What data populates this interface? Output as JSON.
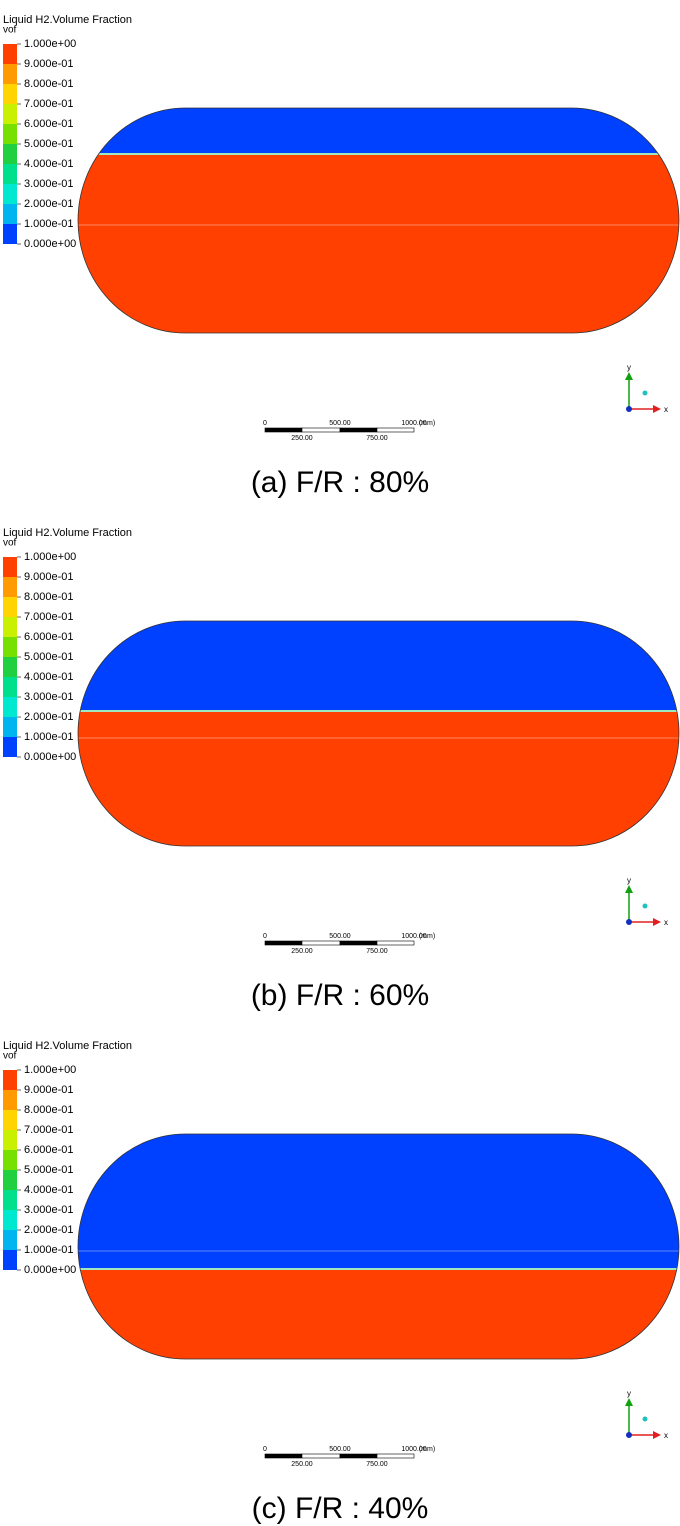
{
  "panels": [
    {
      "legend": {
        "title": "Liquid H2.Volume Fraction",
        "unit": "vof",
        "labels": [
          "1.000e+00",
          "9.000e-01",
          "8.000e-01",
          "7.000e-01",
          "6.000e-01",
          "5.000e-01",
          "4.000e-01",
          "3.000e-01",
          "2.000e-01",
          "1.000e-01",
          "0.000e+00"
        ]
      },
      "scale": {
        "top": [
          "0",
          "500.00",
          "1000.00"
        ],
        "unit": "(mm)",
        "bottom": [
          "250.00",
          "750.00"
        ]
      },
      "axes": {
        "x": "x",
        "y": "y"
      },
      "caption": "(a) F/R : 80%"
    },
    {
      "legend": {
        "title": "Liquid H2.Volume Fraction",
        "unit": "vof",
        "labels": [
          "1.000e+00",
          "9.000e-01",
          "8.000e-01",
          "7.000e-01",
          "6.000e-01",
          "5.000e-01",
          "4.000e-01",
          "3.000e-01",
          "2.000e-01",
          "1.000e-01",
          "0.000e+00"
        ]
      },
      "scale": {
        "top": [
          "0",
          "500.00",
          "1000.00"
        ],
        "unit": "(mm)",
        "bottom": [
          "250.00",
          "750.00"
        ]
      },
      "axes": {
        "x": "x",
        "y": "y"
      },
      "caption": "(b) F/R : 60%"
    },
    {
      "legend": {
        "title": "Liquid H2.Volume Fraction",
        "unit": "vof",
        "labels": [
          "1.000e+00",
          "9.000e-01",
          "8.000e-01",
          "7.000e-01",
          "6.000e-01",
          "5.000e-01",
          "4.000e-01",
          "3.000e-01",
          "2.000e-01",
          "1.000e-01",
          "0.000e+00"
        ]
      },
      "scale": {
        "top": [
          "0",
          "500.00",
          "1000.00"
        ],
        "unit": "(mm)",
        "bottom": [
          "250.00",
          "750.00"
        ]
      },
      "axes": {
        "x": "x",
        "y": "y"
      },
      "caption": "(c) F/R : 40%"
    }
  ]
}
